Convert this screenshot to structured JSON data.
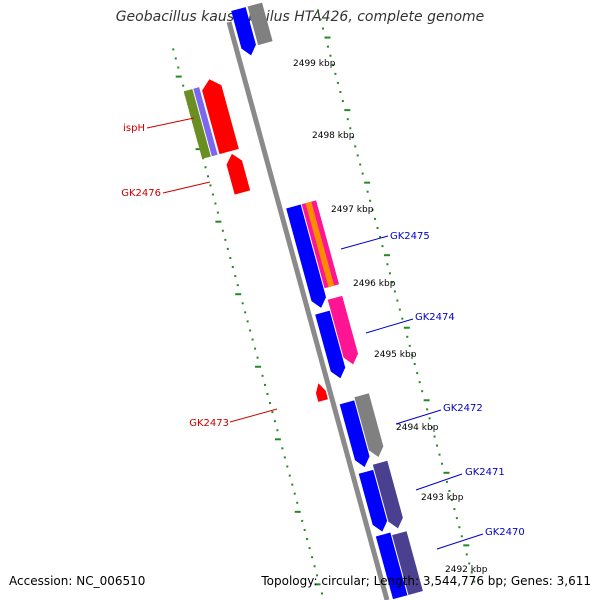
{
  "title": "Geobacillus kaustophilus HTA426, complete genome",
  "accession_text": "Accession: NC_006510",
  "summary_text": "Topology: circular; Length: 3,544,776 bp; Genes: 3,611",
  "colors": {
    "backbone": "#8a8a8a",
    "tick": "#228b22",
    "label_forward": "#0000cc",
    "label_reverse": "#cc0000",
    "forward_gene": "#0000ff",
    "reverse_gene": "#ff0000",
    "pseudo": "#808080",
    "slate": "#4b3f8f",
    "magenta": "#ff1493",
    "orange": "#ff8c00",
    "olive": "#6b8e23",
    "violet": "#7b68ee"
  },
  "scale": {
    "unit": "kbp",
    "labels": [
      "2499 kbp",
      "2498 kbp",
      "2497 kbp",
      "2496 kbp",
      "2495 kbp",
      "2494 kbp",
      "2493 kbp",
      "2492 kbp"
    ]
  },
  "genes": [
    {
      "label": "ispH",
      "strand": "reverse"
    },
    {
      "label": "GK2476",
      "strand": "reverse"
    },
    {
      "label": "GK2475",
      "strand": "forward"
    },
    {
      "label": "GK2474",
      "strand": "forward"
    },
    {
      "label": "GK2473",
      "strand": "reverse"
    },
    {
      "label": "GK2472",
      "strand": "forward"
    },
    {
      "label": "GK2471",
      "strand": "forward"
    },
    {
      "label": "GK2470",
      "strand": "forward"
    }
  ]
}
